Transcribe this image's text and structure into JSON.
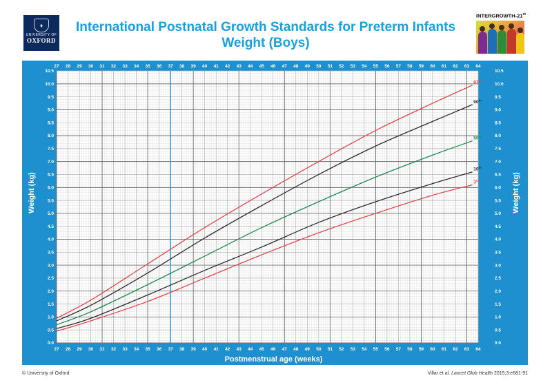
{
  "header": {
    "title_line1": "International Postnatal Growth Standards for Preterm Infants",
    "title_line2": "Weight (Boys)",
    "logo_line1": "UNIVERSITY OF",
    "logo_line2": "OXFORD",
    "brand": "INTERGROWTH-21",
    "brand_sup": "st"
  },
  "footer": {
    "copyright": "© University of Oxford",
    "citation_prefix": "Villar et al. ",
    "citation_journal": "Lancet Glob Health",
    "citation_suffix": " 2015;3:e681-91"
  },
  "colors": {
    "panel": "#1e90cf",
    "title": "#1aa0db",
    "p3": "#e0474c",
    "p10": "#2b2b2b",
    "p50": "#1d8a4e",
    "p90": "#2b2b2b",
    "p97": "#e0474c",
    "marker": "#1e90cf"
  },
  "chart_data": {
    "type": "line",
    "title": "Weight (Boys)",
    "xlabel": "Postmenstrual age (weeks)",
    "ylabel": "Weight (kg)",
    "xlim": [
      27,
      64
    ],
    "ylim": [
      0,
      10.5
    ],
    "x_ticks": [
      27,
      28,
      29,
      30,
      31,
      32,
      33,
      34,
      35,
      36,
      37,
      38,
      39,
      40,
      41,
      42,
      43,
      44,
      45,
      46,
      47,
      48,
      49,
      50,
      51,
      52,
      53,
      54,
      55,
      56,
      57,
      58,
      59,
      60,
      61,
      62,
      63,
      64
    ],
    "y_ticks": [
      "0.0",
      "0.5",
      "1.0",
      "1.5",
      "2.0",
      "2.5",
      "3.0",
      "3.5",
      "4.0",
      "4.5",
      "5.0",
      "5.5",
      "6.0",
      "6.5",
      "7.0",
      "7.5",
      "8.0",
      "8.5",
      "9.0",
      "9.5",
      "10.0",
      "10.5"
    ],
    "marker_week": 37,
    "grid": true,
    "x": [
      27,
      30,
      35,
      40,
      45,
      50,
      55,
      60,
      63.5
    ],
    "series": [
      {
        "name": "3rd",
        "label": "3",
        "sup": "rd",
        "color_key": "p3",
        "values": [
          0.45,
          0.85,
          1.6,
          2.5,
          3.4,
          4.25,
          5.0,
          5.7,
          6.1
        ]
      },
      {
        "name": "10th",
        "label": "10",
        "sup": "th",
        "color_key": "p10",
        "values": [
          0.55,
          0.95,
          1.85,
          2.8,
          3.7,
          4.65,
          5.45,
          6.15,
          6.6
        ]
      },
      {
        "name": "50th",
        "label": "50",
        "sup": "th",
        "color_key": "p50",
        "values": [
          0.7,
          1.2,
          2.25,
          3.35,
          4.45,
          5.45,
          6.4,
          7.25,
          7.8
        ]
      },
      {
        "name": "90th",
        "label": "90",
        "sup": "th",
        "color_key": "p90",
        "values": [
          0.85,
          1.45,
          2.7,
          4.05,
          5.3,
          6.5,
          7.6,
          8.55,
          9.2
        ]
      },
      {
        "name": "97th",
        "label": "97",
        "sup": "th",
        "color_key": "p97",
        "values": [
          0.95,
          1.65,
          3.05,
          4.45,
          5.75,
          7.0,
          8.2,
          9.25,
          9.95
        ]
      }
    ]
  }
}
